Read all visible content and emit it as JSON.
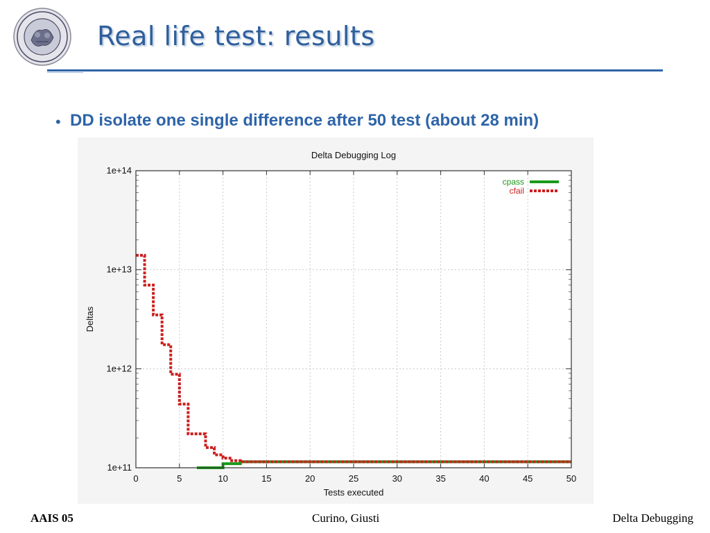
{
  "slide": {
    "title": "Real life test: results",
    "bullet": "DD isolate one single difference after 50 test (about 28 min)",
    "logo_text": "POLITECNICO MILANO"
  },
  "footer": {
    "left": "AAIS 05",
    "center": "Curino, Giusti",
    "right": "Delta Debugging"
  },
  "colors": {
    "title": "#2f5f9c",
    "accent": "#2e64a8",
    "cpass": "#1a9a1a",
    "cfail": "#cc1f1f"
  },
  "chart_data": {
    "type": "line",
    "title": "Delta Debugging Log",
    "xlabel": "Tests executed",
    "ylabel": "Deltas",
    "xlim": [
      0,
      50
    ],
    "ylim": [
      100000000000.0,
      100000000000000.0
    ],
    "yscale": "log",
    "grid": true,
    "legend": "top-right",
    "x_ticks": [
      0,
      5,
      10,
      15,
      20,
      25,
      30,
      35,
      40,
      45,
      50
    ],
    "x_tick_labels": [
      "0",
      "5",
      "10",
      "15",
      "20",
      "25",
      "30",
      "35",
      "40",
      "45",
      "50"
    ],
    "y_ticks": [
      100000000000.0,
      1000000000000.0,
      10000000000000.0,
      100000000000000.0
    ],
    "y_tick_labels": [
      "1e+11",
      "1e+12",
      "1e+13",
      "1e+14"
    ],
    "series": [
      {
        "name": "cpass",
        "step": true,
        "x": [
          7,
          10,
          12,
          50
        ],
        "y": [
          100000000000.0,
          110000000000.0,
          115000000000.0,
          115000000000.0
        ]
      },
      {
        "name": "cfail",
        "step": true,
        "x": [
          0,
          1,
          2,
          3,
          4,
          5,
          6,
          8,
          9,
          10,
          11,
          12,
          50
        ],
        "y": [
          14000000000000.0,
          7000000000000.0,
          3500000000000.0,
          1750000000000.0,
          880000000000.0,
          440000000000.0,
          220000000000.0,
          160000000000.0,
          135000000000.0,
          125000000000.0,
          118000000000.0,
          115000000000.0,
          115000000000.0
        ]
      }
    ]
  }
}
